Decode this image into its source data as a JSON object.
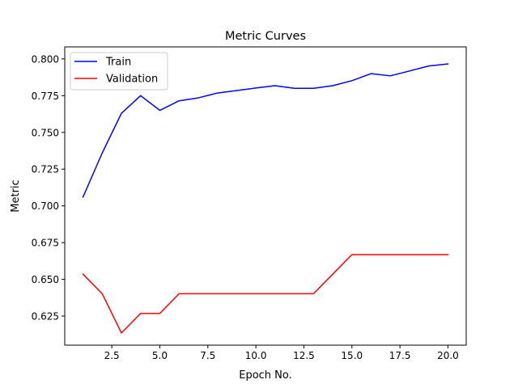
{
  "chart_data": {
    "type": "line",
    "title": "Metric Curves",
    "xlabel": "Epoch No.",
    "ylabel": "Metric",
    "xlim": [
      0.05,
      20.95
    ],
    "ylim": [
      0.6052,
      0.8082
    ],
    "xticks": [
      2.5,
      5.0,
      7.5,
      10.0,
      12.5,
      15.0,
      17.5,
      20.0
    ],
    "xtick_labels": [
      "2.5",
      "5.0",
      "7.5",
      "10.0",
      "12.5",
      "15.0",
      "17.5",
      "20.0"
    ],
    "yticks": [
      0.625,
      0.65,
      0.675,
      0.7,
      0.725,
      0.75,
      0.775,
      0.8
    ],
    "ytick_labels": [
      "0.625",
      "0.650",
      "0.675",
      "0.700",
      "0.725",
      "0.750",
      "0.775",
      "0.800"
    ],
    "grid": false,
    "legend_position": "upper-left",
    "x": [
      1,
      2,
      3,
      4,
      5,
      6,
      7,
      8,
      9,
      10,
      11,
      12,
      13,
      14,
      15,
      16,
      17,
      18,
      19,
      20
    ],
    "series": [
      {
        "name": "Train",
        "color": "#0000ff",
        "values": [
          0.706,
          0.736,
          0.763,
          0.775,
          0.765,
          0.7715,
          0.7735,
          0.7768,
          0.7785,
          0.7802,
          0.7818,
          0.78,
          0.78,
          0.7818,
          0.7852,
          0.79,
          0.7885,
          0.7918,
          0.7952,
          0.7966
        ]
      },
      {
        "name": "Validation",
        "color": "#ff0000",
        "values": [
          0.6535,
          0.6402,
          0.6135,
          0.6268,
          0.6268,
          0.6402,
          0.6402,
          0.6402,
          0.6402,
          0.6402,
          0.6402,
          0.6402,
          0.6402,
          0.6535,
          0.6668,
          0.6668,
          0.6668,
          0.6668,
          0.6668,
          0.6668
        ]
      }
    ]
  }
}
